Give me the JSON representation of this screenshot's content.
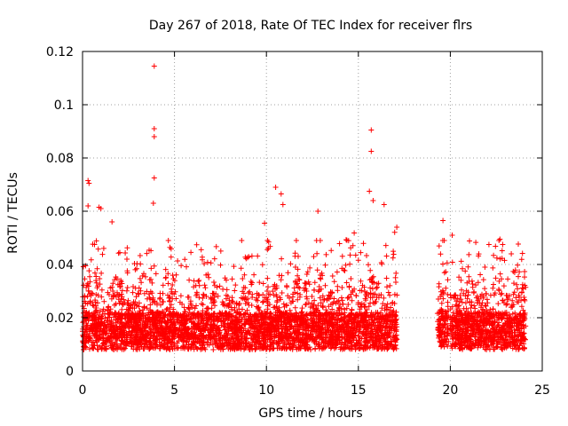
{
  "chart_data": {
    "type": "scatter",
    "title": "Day 267 of 2018, Rate Of TEC Index for receiver flrs",
    "xlabel": "GPS time / hours",
    "ylabel": "ROTI / TECUs",
    "xlim": [
      0,
      25
    ],
    "ylim": [
      0,
      0.12
    ],
    "xticks": [
      0,
      5,
      10,
      15,
      20,
      25
    ],
    "xtick_labels": [
      "0",
      "5",
      "10",
      "15",
      "20",
      "25"
    ],
    "yticks": [
      0,
      0.02,
      0.04,
      0.06,
      0.08,
      0.1,
      0.12
    ],
    "ytick_labels": [
      "0",
      "0.02",
      "0.04",
      "0.06",
      "0.08",
      "0.1",
      "0.12"
    ],
    "grid": true,
    "marker": "+",
    "color": "#ff0000",
    "series": [
      {
        "name": "ROTI",
        "data_segments": [
          {
            "x_range": [
              0.0,
              14.0
            ],
            "y_floor": 0.002,
            "y_typical_max": 0.045
          },
          {
            "x_range": [
              14.0,
              17.1
            ],
            "y_floor": 0.002,
            "y_typical_max": 0.05
          },
          {
            "x_range": [
              19.3,
              19.9
            ],
            "y_floor": 0.003,
            "y_typical_max": 0.045
          },
          {
            "x_range": [
              20.0,
              24.1
            ],
            "y_floor": 0.002,
            "y_typical_max": 0.045
          }
        ],
        "gap_hours": [
          [
            17.1,
            19.3
          ],
          [
            19.9,
            20.0
          ]
        ],
        "notable_points": [
          {
            "x": 3.9,
            "y": 0.1145
          },
          {
            "x": 3.9,
            "y": 0.091
          },
          {
            "x": 3.9,
            "y": 0.088
          },
          {
            "x": 3.9,
            "y": 0.0725
          },
          {
            "x": 3.85,
            "y": 0.063
          },
          {
            "x": 0.3,
            "y": 0.0715
          },
          {
            "x": 0.35,
            "y": 0.0705
          },
          {
            "x": 0.3,
            "y": 0.062
          },
          {
            "x": 0.9,
            "y": 0.0615
          },
          {
            "x": 1.0,
            "y": 0.061
          },
          {
            "x": 1.6,
            "y": 0.056
          },
          {
            "x": 10.5,
            "y": 0.069
          },
          {
            "x": 10.8,
            "y": 0.0665
          },
          {
            "x": 10.9,
            "y": 0.0625
          },
          {
            "x": 9.9,
            "y": 0.0555
          },
          {
            "x": 12.8,
            "y": 0.06
          },
          {
            "x": 15.7,
            "y": 0.0905
          },
          {
            "x": 15.7,
            "y": 0.0825
          },
          {
            "x": 15.6,
            "y": 0.0675
          },
          {
            "x": 15.8,
            "y": 0.064
          },
          {
            "x": 16.4,
            "y": 0.0625
          },
          {
            "x": 19.6,
            "y": 0.0565
          },
          {
            "x": 20.1,
            "y": 0.051
          },
          {
            "x": 22.1,
            "y": 0.0475
          },
          {
            "x": 22.7,
            "y": 0.0495
          },
          {
            "x": 23.5,
            "y": 0.037
          }
        ]
      }
    ]
  }
}
